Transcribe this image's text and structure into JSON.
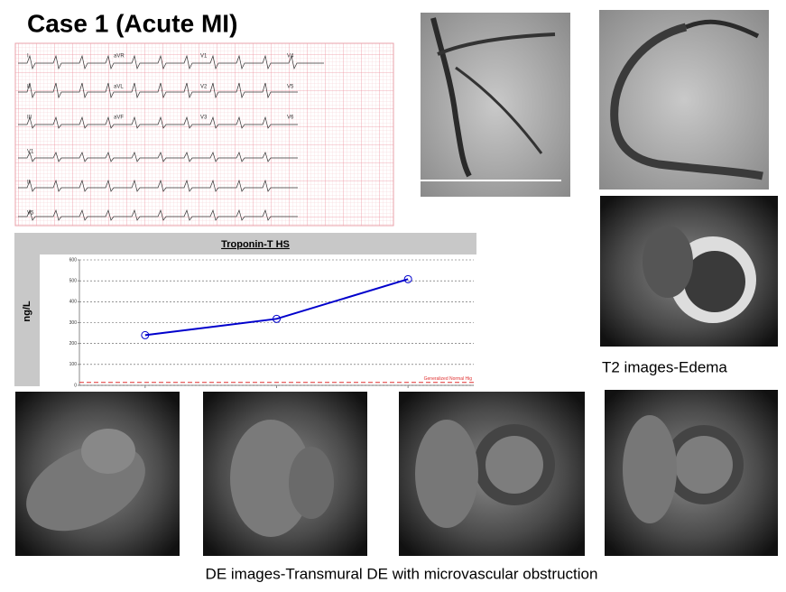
{
  "title": "Case 1 (Acute MI)",
  "ecg": {
    "lead_labels": [
      "I",
      "aVR",
      "V1",
      "V4",
      "II",
      "aVL",
      "V2",
      "V5",
      "III",
      "aVF",
      "V3",
      "V6",
      "V1",
      "II",
      "V5"
    ]
  },
  "captions": {
    "t2": "T2 images-Edema",
    "de": "DE images-Transmural DE with microvascular obstruction"
  },
  "chart_data": {
    "type": "line",
    "title": "Troponin-T HS",
    "y_label": "ng/L",
    "categories": [
      null,
      null,
      null
    ],
    "series": [
      {
        "name": "Troponin-T HS",
        "color": "#0000cc",
        "values": [
          240,
          318,
          508
        ]
      }
    ],
    "ylim": [
      0,
      600
    ],
    "yticks": [
      0,
      100,
      200,
      300,
      400,
      500,
      600
    ],
    "grid": true,
    "reference_line": {
      "value": 14,
      "label": "Generalized Normal Hig",
      "color": "#e03030"
    }
  }
}
